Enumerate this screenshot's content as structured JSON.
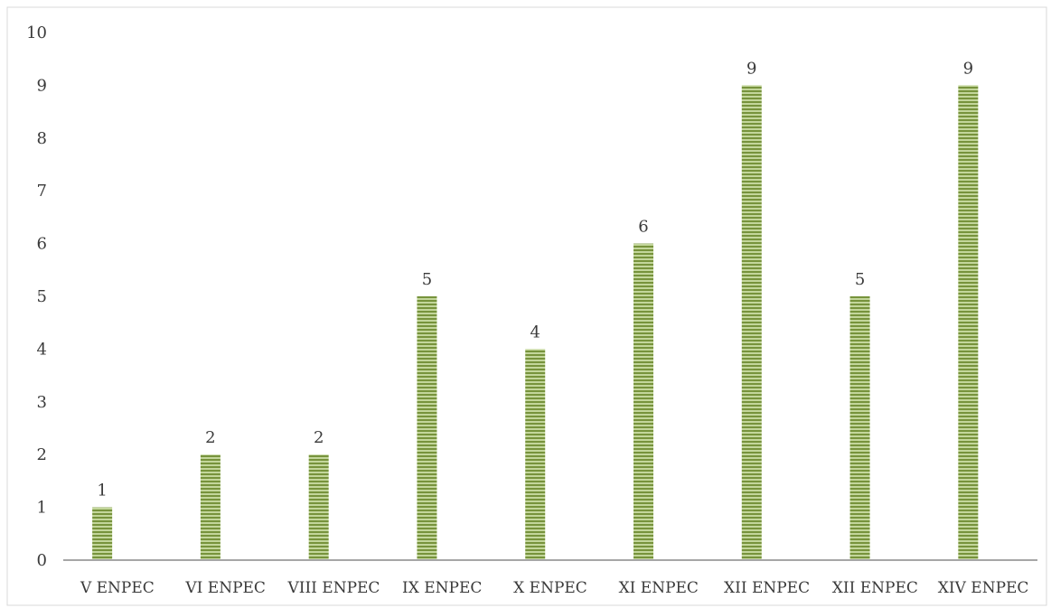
{
  "chart_data": {
    "type": "bar",
    "categories": [
      "V ENPEC",
      "VI ENPEC",
      "VIII ENPEC",
      "IX ENPEC",
      "X ENPEC",
      "XI ENPEC",
      "XII ENPEC",
      "XII ENPEC",
      "XIV ENPEC"
    ],
    "values": [
      1,
      2,
      2,
      5,
      4,
      6,
      9,
      5,
      9
    ],
    "title": "",
    "xlabel": "",
    "ylabel": "",
    "ylim": [
      0,
      10
    ],
    "yticks": [
      "0",
      "1",
      "2",
      "3",
      "4",
      "5",
      "6",
      "7",
      "8",
      "9",
      "10"
    ],
    "data_labels": [
      "1",
      "2",
      "2",
      "5",
      "4",
      "6",
      "9",
      "5",
      "9"
    ],
    "grid": false,
    "legend": "none",
    "colors": {
      "bar_fill": "#c3d69b",
      "bar_stripe": "#77933c",
      "axis": "#a6a6a6",
      "frame": "#d9d9d9"
    }
  }
}
